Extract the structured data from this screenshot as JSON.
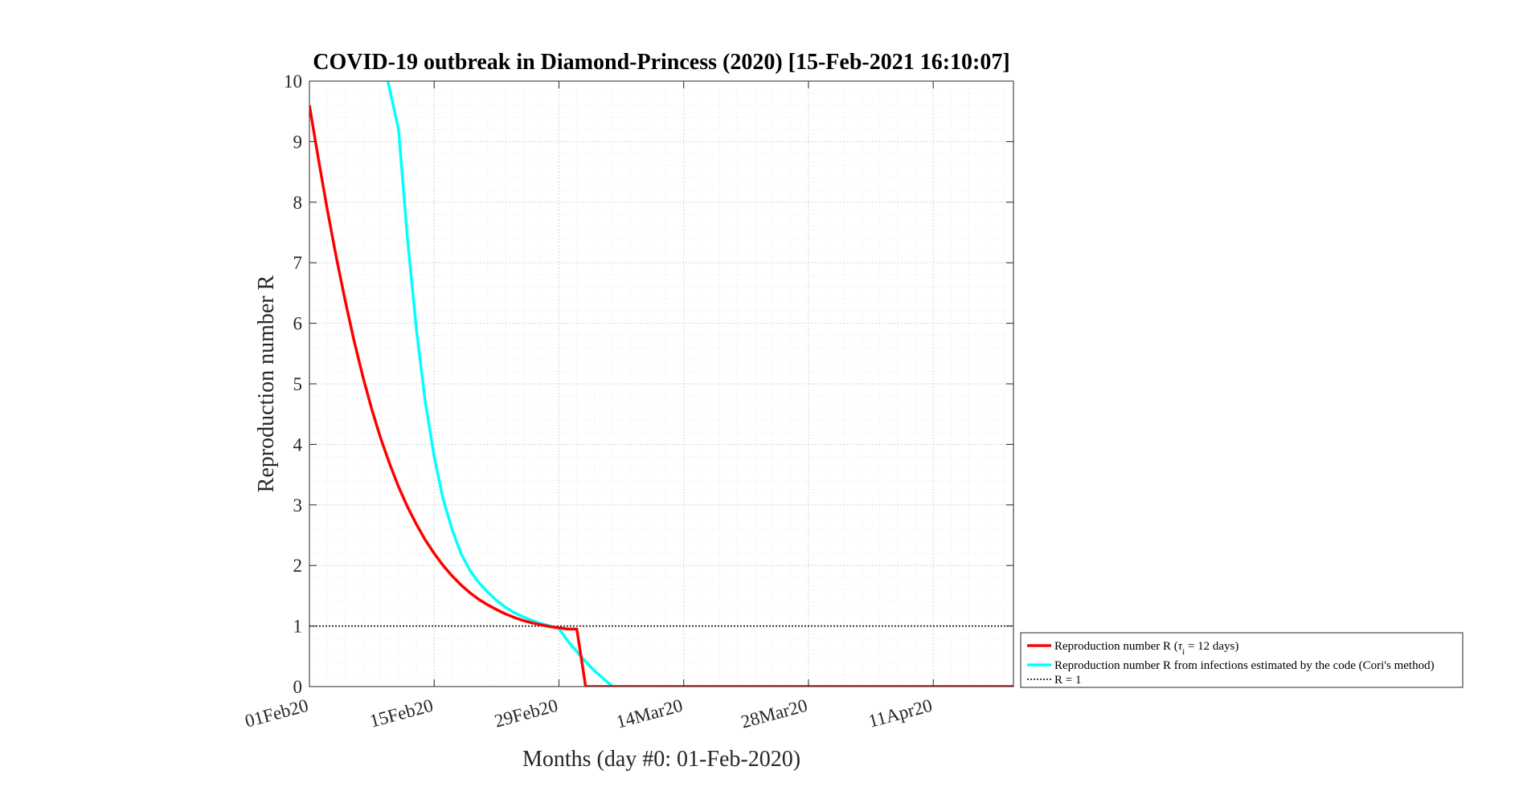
{
  "chart_data": {
    "type": "line",
    "title": "COVID-19 outbreak in Diamond-Princess (2020) [15-Feb-2021 16:10:07]",
    "xlabel": "Months (day #0: 01-Feb-2020)",
    "ylabel": "Reproduction number R",
    "x_ticks": [
      {
        "day": 0,
        "label": "01Feb20"
      },
      {
        "day": 14,
        "label": "15Feb20"
      },
      {
        "day": 28,
        "label": "29Feb20"
      },
      {
        "day": 42,
        "label": "14Mar20"
      },
      {
        "day": 56,
        "label": "28Mar20"
      },
      {
        "day": 70,
        "label": "11Apr20"
      }
    ],
    "y_ticks": [
      0,
      1,
      2,
      3,
      4,
      5,
      6,
      7,
      8,
      9,
      10
    ],
    "xlim": [
      0,
      79
    ],
    "ylim": [
      0,
      10
    ],
    "grid": true,
    "minor_grid": true,
    "legend_position": "outside bottom-right",
    "series": [
      {
        "name": "Reproduction number R (τ_i = 12 days)",
        "color": "#ff0000",
        "x": [
          0,
          1,
          2,
          3,
          4,
          5,
          6,
          7,
          8,
          9,
          10,
          11,
          12,
          13,
          14,
          15,
          16,
          17,
          18,
          19,
          20,
          21,
          22,
          23,
          24,
          25,
          26,
          27,
          28,
          29,
          30,
          31,
          35,
          40,
          45,
          50,
          55,
          60,
          65,
          70,
          75,
          79
        ],
        "y": [
          9.6,
          8.72,
          7.88,
          7.1,
          6.38,
          5.72,
          5.12,
          4.58,
          4.1,
          3.68,
          3.3,
          2.97,
          2.68,
          2.42,
          2.2,
          2.0,
          1.83,
          1.68,
          1.55,
          1.44,
          1.35,
          1.27,
          1.2,
          1.14,
          1.09,
          1.05,
          1.02,
          0.99,
          0.97,
          0.95,
          0.95,
          0.0,
          0.0,
          0.0,
          0.0,
          0.0,
          0.0,
          0.0,
          0.0,
          0.0,
          0.0,
          0.0
        ]
      },
      {
        "name": "Reproduction number R from infections estimated by the code (Cori's method)",
        "color": "#00ffff",
        "x": [
          8.8,
          10,
          11,
          12,
          13,
          14,
          15,
          16,
          17,
          18,
          19,
          20,
          21,
          22,
          23,
          24,
          25,
          26,
          27,
          28,
          29,
          30,
          31,
          32,
          33,
          34,
          35,
          40,
          45,
          50,
          55,
          60,
          65,
          70,
          75,
          79
        ],
        "y": [
          10.0,
          9.2,
          7.4,
          5.9,
          4.7,
          3.8,
          3.1,
          2.6,
          2.2,
          1.92,
          1.72,
          1.56,
          1.42,
          1.31,
          1.22,
          1.15,
          1.09,
          1.04,
          1.0,
          0.96,
          0.75,
          0.58,
          0.41,
          0.26,
          0.13,
          0.0,
          0.0,
          0.0,
          0.0,
          0.0,
          0.0,
          0.0,
          0.0,
          0.0,
          0.0,
          0.0
        ]
      },
      {
        "name": "R = 1",
        "color": "#000000",
        "style": "dotted",
        "x": [
          0,
          79
        ],
        "y": [
          1,
          1
        ]
      }
    ]
  }
}
